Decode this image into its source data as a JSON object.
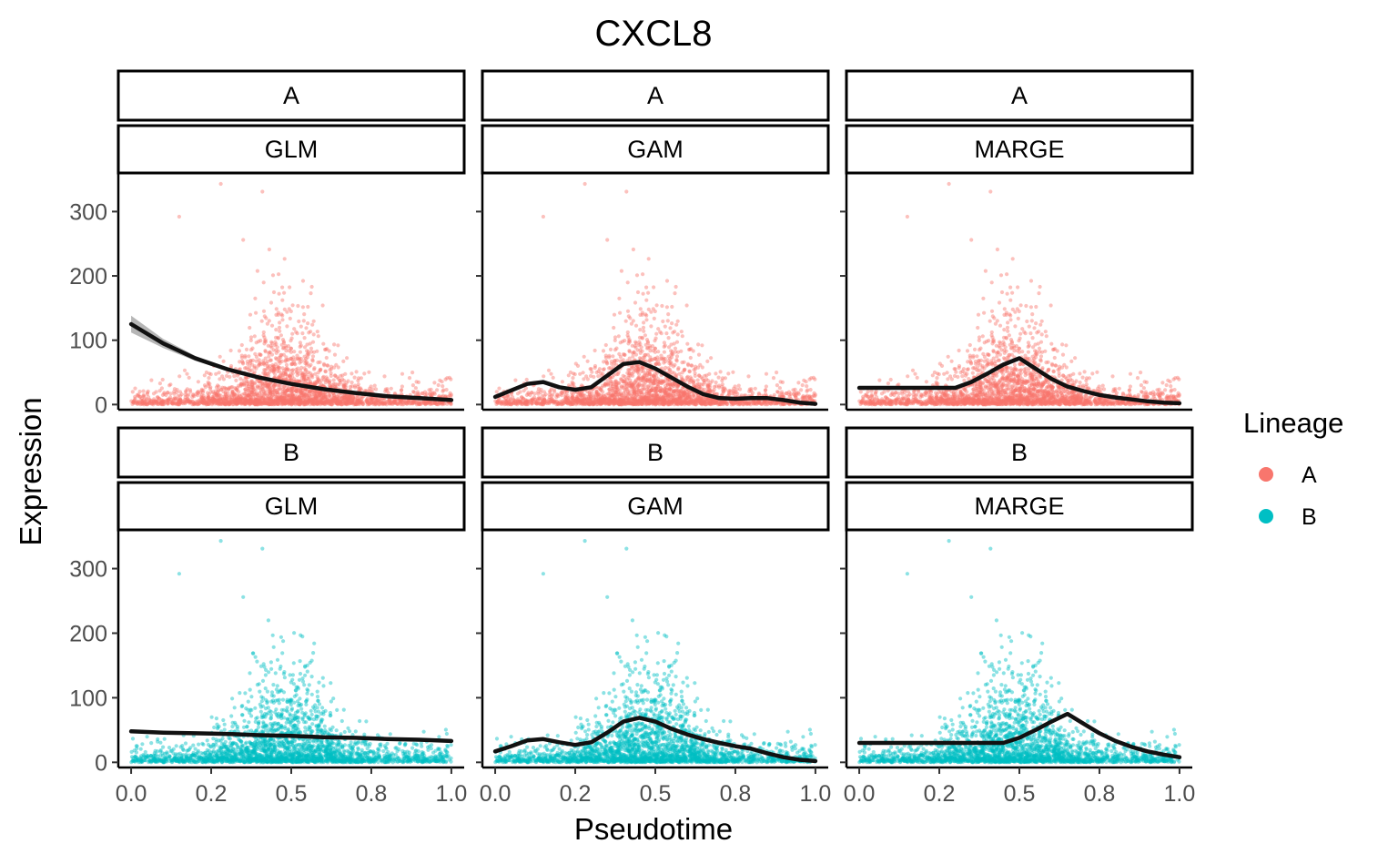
{
  "chart_data": {
    "type": "scatter",
    "title": "CXCL8",
    "xlabel": "Pseudotime",
    "ylabel": "Expression",
    "xlim": [
      -0.04,
      1.04
    ],
    "ylim": [
      -8,
      360
    ],
    "x_ticks": [
      0.0,
      0.25,
      0.5,
      0.75,
      1.0
    ],
    "x_tick_labels": [
      "0.0",
      "0.2",
      "0.5",
      "0.8",
      "1.0"
    ],
    "y_ticks": [
      0,
      100,
      200,
      300
    ],
    "y_tick_labels": [
      "0",
      "100",
      "200",
      "300"
    ],
    "grid": false,
    "legend": {
      "title": "Lineage",
      "position": "right",
      "entries": [
        {
          "label": "A",
          "color": "#F8766D"
        },
        {
          "label": "B",
          "color": "#00BFC4"
        }
      ]
    },
    "rows": [
      {
        "lineage": "A",
        "color": "#F8766D",
        "seed": 12345
      },
      {
        "lineage": "B",
        "color": "#00BFC4",
        "seed": 67890
      }
    ],
    "columns": [
      "GLM",
      "GAM",
      "MARGE"
    ],
    "point_distribution": {
      "n_points": 2400,
      "x_range": [
        0.0,
        1.0
      ],
      "peak_x": 0.48,
      "notable_points": [
        [
          0.28,
          343
        ],
        [
          0.41,
          331
        ],
        [
          0.15,
          292
        ],
        [
          0.35,
          256
        ]
      ]
    },
    "fits": {
      "A": {
        "GLM": {
          "x": [
            0,
            0.1,
            0.2,
            0.3,
            0.4,
            0.5,
            0.6,
            0.7,
            0.8,
            0.9,
            1.0
          ],
          "y": [
            125,
            95,
            72,
            55,
            42,
            32,
            24,
            18,
            13,
            10,
            7
          ],
          "ci_width": [
            13,
            7,
            4,
            3,
            2,
            2,
            2,
            2,
            2,
            2,
            3
          ]
        },
        "GAM": {
          "x": [
            0,
            0.05,
            0.1,
            0.15,
            0.2,
            0.25,
            0.3,
            0.35,
            0.4,
            0.45,
            0.5,
            0.55,
            0.6,
            0.65,
            0.7,
            0.75,
            0.8,
            0.85,
            0.9,
            0.95,
            1.0
          ],
          "y": [
            12,
            22,
            32,
            35,
            27,
            23,
            27,
            45,
            63,
            66,
            56,
            42,
            28,
            16,
            10,
            9,
            10,
            10,
            7,
            3,
            1
          ]
        },
        "MARGE": {
          "x": [
            0,
            0.05,
            0.1,
            0.15,
            0.2,
            0.25,
            0.3,
            0.35,
            0.4,
            0.45,
            0.5,
            0.55,
            0.6,
            0.65,
            0.7,
            0.75,
            0.8,
            0.85,
            0.9,
            0.95,
            1.0
          ],
          "y": [
            26,
            26,
            26,
            26,
            26,
            26,
            26,
            35,
            48,
            62,
            72,
            56,
            40,
            28,
            21,
            15,
            11,
            8,
            5,
            3,
            2
          ]
        }
      },
      "B": {
        "GLM": {
          "x": [
            0,
            0.1,
            0.2,
            0.3,
            0.4,
            0.5,
            0.6,
            0.7,
            0.8,
            0.9,
            1.0
          ],
          "y": [
            48,
            46,
            45,
            44,
            42,
            41,
            39,
            38,
            36,
            35,
            33
          ],
          "ci_width": [
            3,
            2,
            2,
            2,
            2,
            2,
            2,
            2,
            2,
            2,
            3
          ]
        },
        "GAM": {
          "x": [
            0,
            0.05,
            0.1,
            0.15,
            0.2,
            0.25,
            0.3,
            0.35,
            0.4,
            0.45,
            0.5,
            0.55,
            0.6,
            0.65,
            0.7,
            0.75,
            0.8,
            0.85,
            0.9,
            0.95,
            1.0
          ],
          "y": [
            17,
            25,
            34,
            36,
            31,
            27,
            31,
            46,
            63,
            69,
            63,
            52,
            43,
            36,
            30,
            25,
            21,
            14,
            8,
            4,
            2
          ]
        },
        "MARGE": {
          "x": [
            0,
            0.05,
            0.1,
            0.15,
            0.2,
            0.25,
            0.3,
            0.35,
            0.4,
            0.45,
            0.5,
            0.55,
            0.6,
            0.65,
            0.7,
            0.75,
            0.8,
            0.85,
            0.9,
            0.95,
            1.0
          ],
          "y": [
            30,
            30,
            30,
            30,
            30,
            30,
            30,
            30,
            30,
            30,
            38,
            50,
            63,
            75,
            60,
            45,
            33,
            24,
            17,
            12,
            8
          ]
        }
      }
    }
  }
}
